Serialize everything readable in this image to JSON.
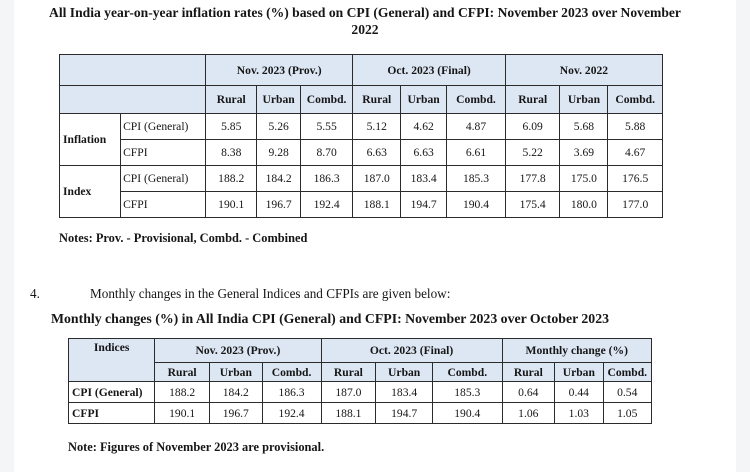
{
  "title1": "All India year-on-year inflation rates (%) based on CPI (General) and CFPI: November 2023 over November 2022",
  "table1": {
    "periods": [
      "Nov. 2023 (Prov.)",
      "Oct. 2023 (Final)",
      "Nov. 2022"
    ],
    "sub_headers": [
      "Rural",
      "Urban",
      "Combd.",
      "Rural",
      "Urban",
      "Combd.",
      "Rural",
      "Urban",
      "Combd."
    ],
    "groups": [
      {
        "label": "Inflation",
        "rows": [
          {
            "name": "CPI (General)",
            "values": [
              "5.85",
              "5.26",
              "5.55",
              "5.12",
              "4.62",
              "4.87",
              "6.09",
              "5.68",
              "5.88"
            ]
          },
          {
            "name": "CFPI",
            "values": [
              "8.38",
              "9.28",
              "8.70",
              "6.63",
              "6.63",
              "6.61",
              "5.22",
              "3.69",
              "4.67"
            ]
          }
        ]
      },
      {
        "label": "Index",
        "rows": [
          {
            "name": "CPI (General)",
            "values": [
              "188.2",
              "184.2",
              "186.3",
              "187.0",
              "183.4",
              "185.3",
              "177.8",
              "175.0",
              "176.5"
            ]
          },
          {
            "name": "CFPI",
            "values": [
              "190.1",
              "196.7",
              "192.4",
              "188.1",
              "194.7",
              "190.4",
              "175.4",
              "180.0",
              "177.0"
            ]
          }
        ]
      }
    ],
    "notes": "Notes: Prov. - Provisional, Combd. - Combined"
  },
  "paragraph": {
    "number": "4.",
    "text": "Monthly changes in the General Indices and CFPIs are given below:"
  },
  "title2": "Monthly changes (%) in All India CPI (General) and CFPI: November 2023 over October 2023",
  "table2": {
    "indices_header": "Indices",
    "periods": [
      "Nov. 2023 (Prov.)",
      "Oct. 2023 (Final)",
      "Monthly change (%)"
    ],
    "sub_headers": [
      "Rural",
      "Urban",
      "Combd.",
      "Rural",
      "Urban",
      "Combd.",
      "Rural",
      "Urban",
      "Combd."
    ],
    "rows": [
      {
        "name": "CPI (General)",
        "values": [
          "188.2",
          "184.2",
          "186.3",
          "187.0",
          "183.4",
          "185.3",
          "0.64",
          "0.44",
          "0.54"
        ]
      },
      {
        "name": "CFPI",
        "values": [
          "190.1",
          "196.7",
          "192.4",
          "188.1",
          "194.7",
          "190.4",
          "1.06",
          "1.03",
          "1.05"
        ]
      }
    ],
    "notes": "Note: Figures of November 2023 are provisional."
  }
}
